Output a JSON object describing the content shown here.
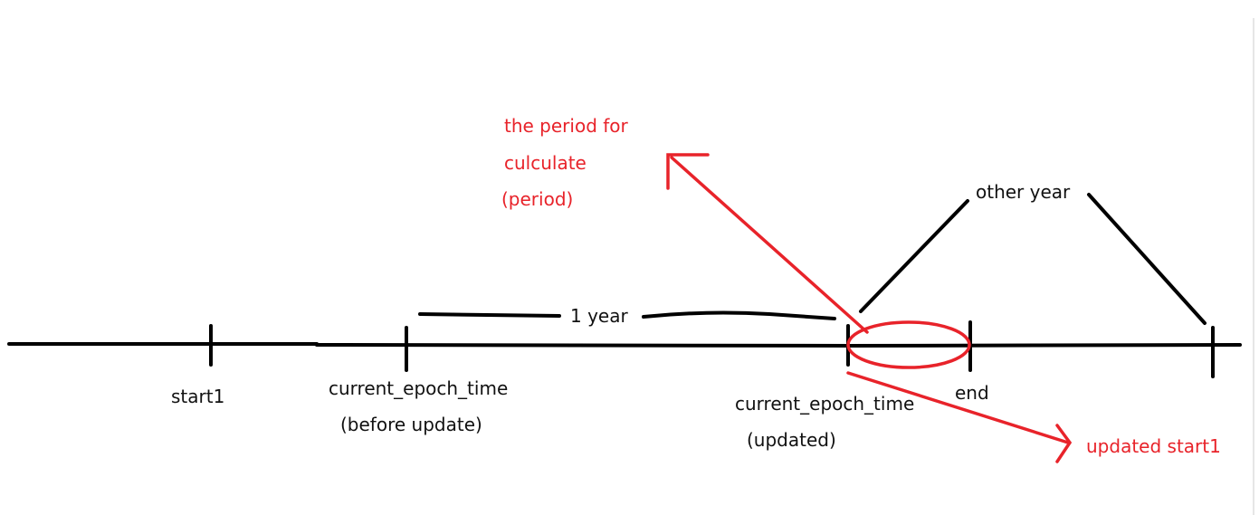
{
  "labels": {
    "start1": "start1",
    "current_before_line1": "current_epoch_time",
    "current_before_line2": "(before update)",
    "one_year": "1 year",
    "current_updated_line1": "current_epoch_time",
    "current_updated_line2": "(updated)",
    "end": "end",
    "other_year": "other year",
    "period_line1": "the period for",
    "period_line2": "culculate",
    "period_line3": "(period)",
    "updated_start1": "updated start1"
  },
  "colors": {
    "ink": "#111111",
    "annotation": "#e8232a"
  }
}
